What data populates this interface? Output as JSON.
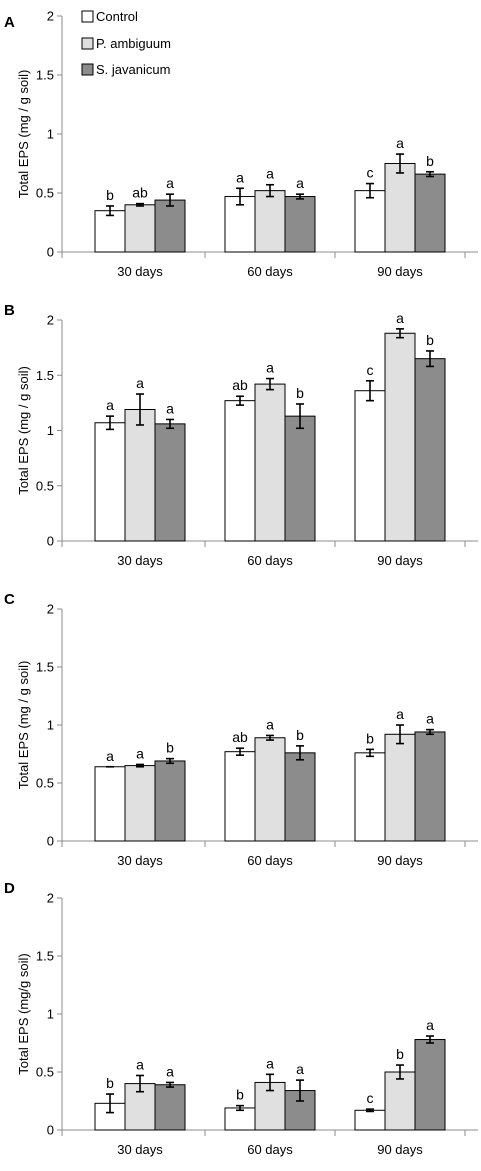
{
  "legend": {
    "items": [
      {
        "label": "Control",
        "color": "#ffffff"
      },
      {
        "label": "P. ambiguum",
        "color": "#e0e0e0"
      },
      {
        "label": "S. javanicum",
        "color": "#8c8c8c"
      }
    ]
  },
  "chart_data": [
    {
      "type": "bar",
      "panel": "A",
      "ylabel": "Total EPS (mg / g soil)",
      "ylim": [
        0,
        2
      ],
      "yticks": [
        "0",
        "0.5",
        "1",
        "1.5",
        "2"
      ],
      "categories": [
        "30 days",
        "60 days",
        "90 days"
      ],
      "series": [
        {
          "name": "Control",
          "values": [
            0.35,
            0.47,
            0.52
          ],
          "errors": [
            0.04,
            0.07,
            0.06
          ],
          "labels": [
            "b",
            "a",
            "c"
          ]
        },
        {
          "name": "P. ambiguum",
          "values": [
            0.4,
            0.52,
            0.75
          ],
          "errors": [
            0.01,
            0.05,
            0.08
          ],
          "labels": [
            "ab",
            "a",
            "a"
          ]
        },
        {
          "name": "S. javanicum",
          "values": [
            0.44,
            0.47,
            0.66
          ],
          "errors": [
            0.05,
            0.02,
            0.02
          ],
          "labels": [
            "a",
            "a",
            "b"
          ]
        }
      ]
    },
    {
      "type": "bar",
      "panel": "B",
      "ylabel": "Total EPS (mg / g soil)",
      "ylim": [
        0,
        2
      ],
      "yticks": [
        "0",
        "0.5",
        "1",
        "1.5",
        "2"
      ],
      "categories": [
        "30 days",
        "60 days",
        "90 days"
      ],
      "series": [
        {
          "name": "Control",
          "values": [
            1.07,
            1.27,
            1.36
          ],
          "errors": [
            0.06,
            0.04,
            0.09
          ],
          "labels": [
            "a",
            "ab",
            "c"
          ]
        },
        {
          "name": "P. ambiguum",
          "values": [
            1.19,
            1.42,
            1.88
          ],
          "errors": [
            0.14,
            0.05,
            0.04
          ],
          "labels": [
            "a",
            "a",
            "a"
          ]
        },
        {
          "name": "S. javanicum",
          "values": [
            1.06,
            1.13,
            1.65
          ],
          "errors": [
            0.04,
            0.11,
            0.07
          ],
          "labels": [
            "a",
            "b",
            "b"
          ]
        }
      ]
    },
    {
      "type": "bar",
      "panel": "C",
      "ylabel": "Total EPS (mg / g soil)",
      "ylim": [
        0,
        2
      ],
      "yticks": [
        "0",
        "0.5",
        "1",
        "1.5",
        "2"
      ],
      "categories": [
        "30 days",
        "60 days",
        "90 days"
      ],
      "series": [
        {
          "name": "Control",
          "values": [
            0.64,
            0.77,
            0.76
          ],
          "errors": [
            0.0,
            0.03,
            0.03
          ],
          "labels": [
            "a",
            "ab",
            "b"
          ]
        },
        {
          "name": "P. ambiguum",
          "values": [
            0.65,
            0.89,
            0.92
          ],
          "errors": [
            0.01,
            0.02,
            0.08
          ],
          "labels": [
            "a",
            "a",
            "a"
          ]
        },
        {
          "name": "S. javanicum",
          "values": [
            0.69,
            0.76,
            0.94
          ],
          "errors": [
            0.02,
            0.06,
            0.02
          ],
          "labels": [
            "b",
            "b",
            "a"
          ]
        }
      ]
    },
    {
      "type": "bar",
      "panel": "D",
      "ylabel": "Total EPS (mg/g soil)",
      "ylim": [
        0,
        2
      ],
      "yticks": [
        "0",
        "0.5",
        "1",
        "1.5",
        "2"
      ],
      "categories": [
        "30 days",
        "60 days",
        "90 days"
      ],
      "series": [
        {
          "name": "Control",
          "values": [
            0.23,
            0.19,
            0.17
          ],
          "errors": [
            0.08,
            0.02,
            0.01
          ],
          "labels": [
            "b",
            "b",
            "c"
          ]
        },
        {
          "name": "P. ambiguum",
          "values": [
            0.4,
            0.41,
            0.5
          ],
          "errors": [
            0.07,
            0.07,
            0.06
          ],
          "labels": [
            "a",
            "a",
            "b"
          ]
        },
        {
          "name": "S. javanicum",
          "values": [
            0.39,
            0.34,
            0.78
          ],
          "errors": [
            0.02,
            0.09,
            0.03
          ],
          "labels": [
            "a",
            "a",
            "a"
          ]
        }
      ]
    }
  ]
}
